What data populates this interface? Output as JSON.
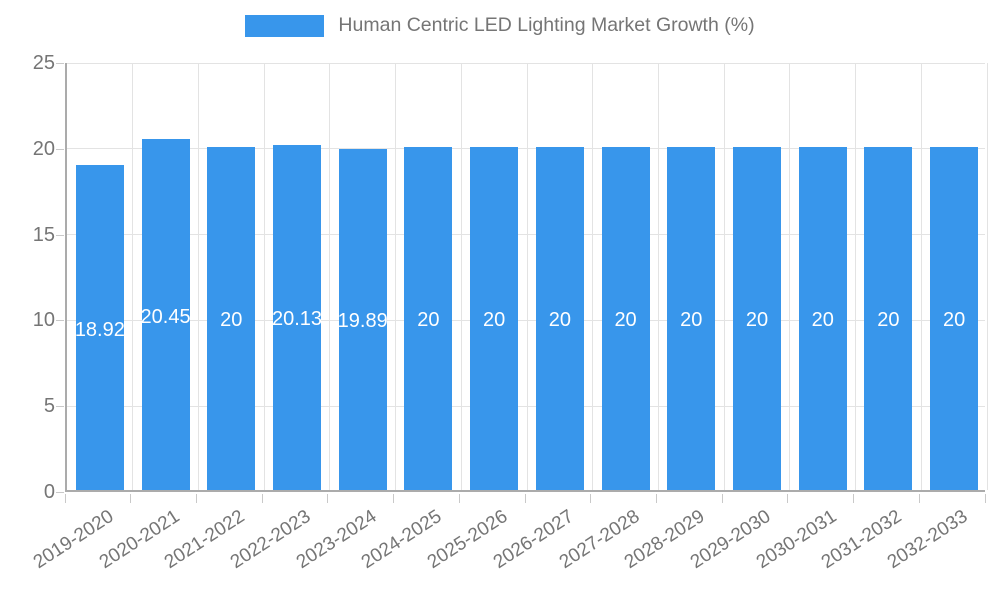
{
  "chart_data": {
    "type": "bar",
    "title": "Human Centric LED Lighting Market Growth (%)",
    "categories": [
      "2019-2020",
      "2020-2021",
      "2021-2022",
      "2022-2023",
      "2023-2024",
      "2024-2025",
      "2025-2026",
      "2026-2027",
      "2027-2028",
      "2028-2029",
      "2029-2030",
      "2030-2031",
      "2031-2032",
      "2032-2033"
    ],
    "values": [
      18.92,
      20.45,
      20,
      20.13,
      19.89,
      20,
      20,
      20,
      20,
      20,
      20,
      20,
      20,
      20
    ],
    "value_labels": [
      "18.92",
      "20.45",
      "20",
      "20.13",
      "19.89",
      "20",
      "20",
      "20",
      "20",
      "20",
      "20",
      "20",
      "20",
      "20"
    ],
    "xlabel": "",
    "ylabel": "",
    "ylim": [
      0,
      25
    ],
    "yticks": [
      0,
      5,
      10,
      15,
      20,
      25
    ],
    "grid": true,
    "legend_position": "top-center"
  },
  "legend": {
    "label": "Human Centric LED Lighting Market Growth (%)"
  },
  "colors": {
    "bar": "#3896EB",
    "value_label": "#FFFFFF",
    "gridline": "#E3E3E3",
    "axis": "#ABABAB",
    "tick_text": "#757575",
    "legend_text": "#757575",
    "background": "#FFFFFF"
  }
}
